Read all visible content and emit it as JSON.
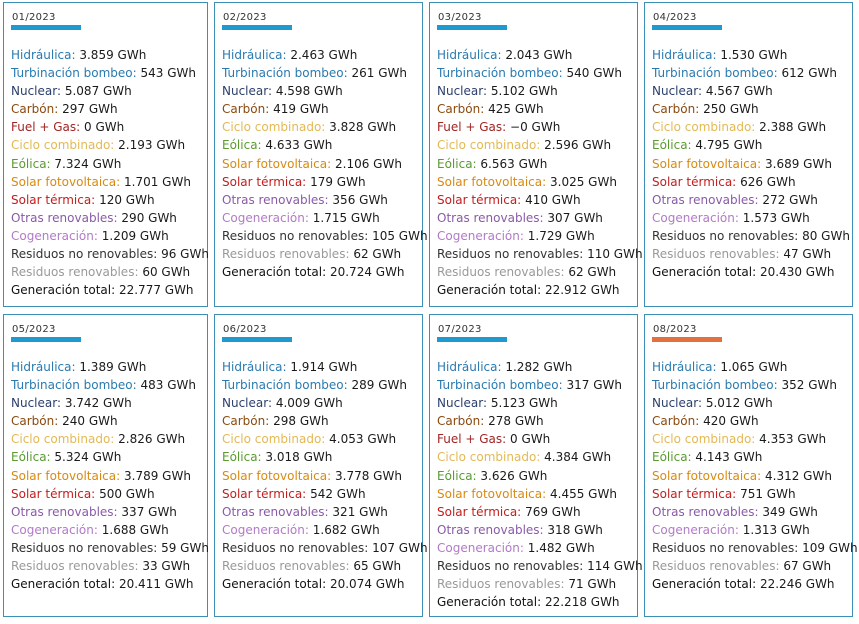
{
  "colors": {
    "bar_default": "#1f9ad0",
    "bar_highlight": "#e4703f",
    "hidraulica": "#2a7ab0",
    "turbinacion": "#2a7ab0",
    "nuclear": "#2a3f6b",
    "carbon": "#8a4a10",
    "fuel_gas": "#a02525",
    "ciclo": "#e3b955",
    "eolica": "#5a9a30",
    "solar_fv": "#d88a10",
    "solar_termica": "#c41d1d",
    "otras_renovables": "#8a5aa8",
    "cogeneracion": "#b27ac8",
    "residuos_no_renovables": "#333333",
    "residuos_renovables": "#999999",
    "generacion_total": "#111111"
  },
  "cards": [
    {
      "month": "01/2023",
      "bar": "bar_default",
      "rows": [
        {
          "key": "hidraulica",
          "label": "Hidráulica:",
          "value": "3.859 GWh"
        },
        {
          "key": "turbinacion",
          "label": "Turbinación bombeo:",
          "value": "543 GWh"
        },
        {
          "key": "nuclear",
          "label": "Nuclear:",
          "value": "5.087 GWh"
        },
        {
          "key": "carbon",
          "label": "Carbón:",
          "value": "297 GWh"
        },
        {
          "key": "fuel_gas",
          "label": "Fuel + Gas:",
          "value": "0 GWh"
        },
        {
          "key": "ciclo",
          "label": "Ciclo combinado:",
          "value": "2.193 GWh"
        },
        {
          "key": "eolica",
          "label": "Eólica:",
          "value": "7.324 GWh"
        },
        {
          "key": "solar_fv",
          "label": "Solar fotovoltaica:",
          "value": "1.701 GWh"
        },
        {
          "key": "solar_termica",
          "label": "Solar térmica:",
          "value": "120 GWh"
        },
        {
          "key": "otras_renovables",
          "label": "Otras renovables:",
          "value": "290 GWh"
        },
        {
          "key": "cogeneracion",
          "label": "Cogeneración:",
          "value": "1.209 GWh"
        },
        {
          "key": "residuos_no_renovables",
          "label": "Residuos no renovables:",
          "value": "96 GWh"
        },
        {
          "key": "residuos_renovables",
          "label": "Residuos renovables:",
          "value": "60 GWh"
        },
        {
          "key": "generacion_total",
          "label": "Generación total:",
          "value": "22.777 GWh"
        }
      ]
    },
    {
      "month": "02/2023",
      "bar": "bar_default",
      "rows": [
        {
          "key": "hidraulica",
          "label": "Hidráulica:",
          "value": "2.463 GWh"
        },
        {
          "key": "turbinacion",
          "label": "Turbinación bombeo:",
          "value": "261 GWh"
        },
        {
          "key": "nuclear",
          "label": "Nuclear:",
          "value": "4.598 GWh"
        },
        {
          "key": "carbon",
          "label": "Carbón:",
          "value": "419 GWh"
        },
        {
          "key": "ciclo",
          "label": "Ciclo combinado:",
          "value": "3.828 GWh"
        },
        {
          "key": "eolica",
          "label": "Eólica:",
          "value": "4.633 GWh"
        },
        {
          "key": "solar_fv",
          "label": "Solar fotovoltaica:",
          "value": "2.106 GWh"
        },
        {
          "key": "solar_termica",
          "label": "Solar térmica:",
          "value": "179 GWh"
        },
        {
          "key": "otras_renovables",
          "label": "Otras renovables:",
          "value": "356 GWh"
        },
        {
          "key": "cogeneracion",
          "label": "Cogeneración:",
          "value": "1.715 GWh"
        },
        {
          "key": "residuos_no_renovables",
          "label": "Residuos no renovables:",
          "value": "105 GWh"
        },
        {
          "key": "residuos_renovables",
          "label": "Residuos renovables:",
          "value": "62 GWh"
        },
        {
          "key": "generacion_total",
          "label": "Generación total:",
          "value": "20.724 GWh"
        }
      ]
    },
    {
      "month": "03/2023",
      "bar": "bar_default",
      "rows": [
        {
          "key": "hidraulica",
          "label": "Hidráulica:",
          "value": "2.043 GWh"
        },
        {
          "key": "turbinacion",
          "label": "Turbinación bombeo:",
          "value": "540 GWh"
        },
        {
          "key": "nuclear",
          "label": "Nuclear:",
          "value": "5.102 GWh"
        },
        {
          "key": "carbon",
          "label": "Carbón:",
          "value": "425 GWh"
        },
        {
          "key": "fuel_gas",
          "label": "Fuel + Gas:",
          "value": "−0 GWh"
        },
        {
          "key": "ciclo",
          "label": "Ciclo combinado:",
          "value": "2.596 GWh"
        },
        {
          "key": "eolica",
          "label": "Eólica:",
          "value": "6.563 GWh"
        },
        {
          "key": "solar_fv",
          "label": "Solar fotovoltaica:",
          "value": "3.025 GWh"
        },
        {
          "key": "solar_termica",
          "label": "Solar térmica:",
          "value": "410 GWh"
        },
        {
          "key": "otras_renovables",
          "label": "Otras renovables:",
          "value": "307 GWh"
        },
        {
          "key": "cogeneracion",
          "label": "Cogeneración:",
          "value": "1.729 GWh"
        },
        {
          "key": "residuos_no_renovables",
          "label": "Residuos no renovables:",
          "value": "110 GWh"
        },
        {
          "key": "residuos_renovables",
          "label": "Residuos renovables:",
          "value": "62 GWh"
        },
        {
          "key": "generacion_total",
          "label": "Generación total:",
          "value": "22.912 GWh"
        }
      ]
    },
    {
      "month": "04/2023",
      "bar": "bar_default",
      "rows": [
        {
          "key": "hidraulica",
          "label": "Hidráulica:",
          "value": "1.530 GWh"
        },
        {
          "key": "turbinacion",
          "label": "Turbinación bombeo:",
          "value": "612 GWh"
        },
        {
          "key": "nuclear",
          "label": "Nuclear:",
          "value": "4.567 GWh"
        },
        {
          "key": "carbon",
          "label": "Carbón:",
          "value": "250 GWh"
        },
        {
          "key": "ciclo",
          "label": "Ciclo combinado:",
          "value": "2.388 GWh"
        },
        {
          "key": "eolica",
          "label": "Eólica:",
          "value": "4.795 GWh"
        },
        {
          "key": "solar_fv",
          "label": "Solar fotovoltaica:",
          "value": "3.689 GWh"
        },
        {
          "key": "solar_termica",
          "label": "Solar térmica:",
          "value": "626 GWh"
        },
        {
          "key": "otras_renovables",
          "label": "Otras renovables:",
          "value": "272 GWh"
        },
        {
          "key": "cogeneracion",
          "label": "Cogeneración:",
          "value": "1.573 GWh"
        },
        {
          "key": "residuos_no_renovables",
          "label": "Residuos no renovables:",
          "value": "80 GWh"
        },
        {
          "key": "residuos_renovables",
          "label": "Residuos renovables:",
          "value": "47 GWh"
        },
        {
          "key": "generacion_total",
          "label": "Generación total:",
          "value": "20.430 GWh"
        }
      ]
    },
    {
      "month": "05/2023",
      "bar": "bar_default",
      "rows": [
        {
          "key": "hidraulica",
          "label": "Hidráulica:",
          "value": "1.389 GWh"
        },
        {
          "key": "turbinacion",
          "label": "Turbinación bombeo:",
          "value": "483 GWh"
        },
        {
          "key": "nuclear",
          "label": "Nuclear:",
          "value": "3.742 GWh"
        },
        {
          "key": "carbon",
          "label": "Carbón:",
          "value": "240 GWh"
        },
        {
          "key": "ciclo",
          "label": "Ciclo combinado:",
          "value": "2.826 GWh"
        },
        {
          "key": "eolica",
          "label": "Eólica:",
          "value": "5.324 GWh"
        },
        {
          "key": "solar_fv",
          "label": "Solar fotovoltaica:",
          "value": "3.789 GWh"
        },
        {
          "key": "solar_termica",
          "label": "Solar térmica:",
          "value": "500 GWh"
        },
        {
          "key": "otras_renovables",
          "label": "Otras renovables:",
          "value": "337 GWh"
        },
        {
          "key": "cogeneracion",
          "label": "Cogeneración:",
          "value": "1.688 GWh"
        },
        {
          "key": "residuos_no_renovables",
          "label": "Residuos no renovables:",
          "value": "59 GWh"
        },
        {
          "key": "residuos_renovables",
          "label": "Residuos renovables:",
          "value": "33 GWh"
        },
        {
          "key": "generacion_total",
          "label": "Generación total:",
          "value": "20.411 GWh"
        }
      ]
    },
    {
      "month": "06/2023",
      "bar": "bar_default",
      "rows": [
        {
          "key": "hidraulica",
          "label": "Hidráulica:",
          "value": "1.914 GWh"
        },
        {
          "key": "turbinacion",
          "label": "Turbinación bombeo:",
          "value": "289 GWh"
        },
        {
          "key": "nuclear",
          "label": "Nuclear:",
          "value": "4.009 GWh"
        },
        {
          "key": "carbon",
          "label": "Carbón:",
          "value": "298 GWh"
        },
        {
          "key": "ciclo",
          "label": "Ciclo combinado:",
          "value": "4.053 GWh"
        },
        {
          "key": "eolica",
          "label": "Eólica:",
          "value": "3.018 GWh"
        },
        {
          "key": "solar_fv",
          "label": "Solar fotovoltaica:",
          "value": "3.778 GWh"
        },
        {
          "key": "solar_termica",
          "label": "Solar térmica:",
          "value": "542 GWh"
        },
        {
          "key": "otras_renovables",
          "label": "Otras renovables:",
          "value": "321 GWh"
        },
        {
          "key": "cogeneracion",
          "label": "Cogeneración:",
          "value": "1.682 GWh"
        },
        {
          "key": "residuos_no_renovables",
          "label": "Residuos no renovables:",
          "value": "107 GWh"
        },
        {
          "key": "residuos_renovables",
          "label": "Residuos renovables:",
          "value": "65 GWh"
        },
        {
          "key": "generacion_total",
          "label": "Generación total:",
          "value": "20.074 GWh"
        }
      ]
    },
    {
      "month": "07/2023",
      "bar": "bar_default",
      "rows": [
        {
          "key": "hidraulica",
          "label": "Hidráulica:",
          "value": "1.282 GWh"
        },
        {
          "key": "turbinacion",
          "label": "Turbinación bombeo:",
          "value": "317 GWh"
        },
        {
          "key": "nuclear",
          "label": "Nuclear:",
          "value": "5.123 GWh"
        },
        {
          "key": "carbon",
          "label": "Carbón:",
          "value": "278 GWh"
        },
        {
          "key": "fuel_gas",
          "label": "Fuel + Gas:",
          "value": "0 GWh"
        },
        {
          "key": "ciclo",
          "label": "Ciclo combinado:",
          "value": "4.384 GWh"
        },
        {
          "key": "eolica",
          "label": "Eólica:",
          "value": "3.626 GWh"
        },
        {
          "key": "solar_fv",
          "label": "Solar fotovoltaica:",
          "value": "4.455 GWh"
        },
        {
          "key": "solar_termica",
          "label": "Solar térmica:",
          "value": "769 GWh"
        },
        {
          "key": "otras_renovables",
          "label": "Otras renovables:",
          "value": "318 GWh"
        },
        {
          "key": "cogeneracion",
          "label": "Cogeneración:",
          "value": "1.482 GWh"
        },
        {
          "key": "residuos_no_renovables",
          "label": "Residuos no renovables:",
          "value": "114 GWh"
        },
        {
          "key": "residuos_renovables",
          "label": "Residuos renovables:",
          "value": "71 GWh"
        },
        {
          "key": "generacion_total",
          "label": "Generación total:",
          "value": "22.218 GWh"
        }
      ]
    },
    {
      "month": "08/2023",
      "bar": "bar_highlight",
      "rows": [
        {
          "key": "hidraulica",
          "label": "Hidráulica:",
          "value": "1.065 GWh"
        },
        {
          "key": "turbinacion",
          "label": "Turbinación bombeo:",
          "value": "352 GWh"
        },
        {
          "key": "nuclear",
          "label": "Nuclear:",
          "value": "5.012 GWh"
        },
        {
          "key": "carbon",
          "label": "Carbón:",
          "value": "420 GWh"
        },
        {
          "key": "ciclo",
          "label": "Ciclo combinado:",
          "value": "4.353 GWh"
        },
        {
          "key": "eolica",
          "label": "Eólica:",
          "value": "4.143 GWh"
        },
        {
          "key": "solar_fv",
          "label": "Solar fotovoltaica:",
          "value": "4.312 GWh"
        },
        {
          "key": "solar_termica",
          "label": "Solar térmica:",
          "value": "751 GWh"
        },
        {
          "key": "otras_renovables",
          "label": "Otras renovables:",
          "value": "349 GWh"
        },
        {
          "key": "cogeneracion",
          "label": "Cogeneración:",
          "value": "1.313 GWh"
        },
        {
          "key": "residuos_no_renovables",
          "label": "Residuos no renovables:",
          "value": "109 GWh"
        },
        {
          "key": "residuos_renovables",
          "label": "Residuos renovables:",
          "value": "67 GWh"
        },
        {
          "key": "generacion_total",
          "label": "Generación total:",
          "value": "22.246 GWh"
        }
      ]
    }
  ]
}
